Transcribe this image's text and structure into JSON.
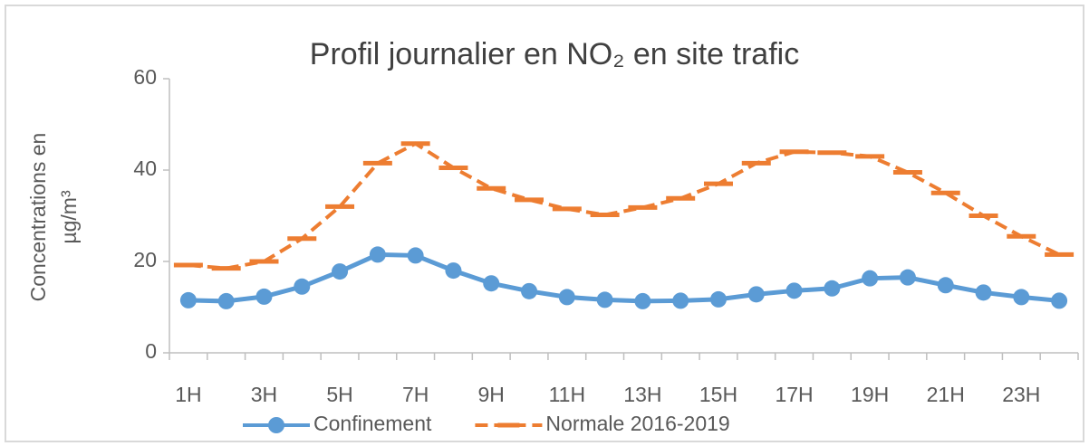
{
  "chart_data": {
    "type": "line",
    "title": "Profil journalier en NO₂ en site trafic",
    "y_label": [
      "Concentrations en",
      "µg/m³"
    ],
    "categories": [
      "1H",
      null,
      "3H",
      null,
      "5H",
      null,
      "7H",
      null,
      "9H",
      null,
      "11H",
      null,
      "13H",
      null,
      "15H",
      null,
      "17H",
      null,
      "19H",
      null,
      "21H",
      null,
      "23H",
      null
    ],
    "series": [
      {
        "name": "Confinement",
        "color": "#5b9bd5",
        "style": "solid-marker",
        "values": [
          11.5,
          11.3,
          12.3,
          14.5,
          17.8,
          21.5,
          21.3,
          18,
          15.2,
          13.5,
          12.2,
          11.6,
          11.3,
          11.4,
          11.7,
          12.8,
          13.6,
          14.1,
          16.3,
          16.5,
          14.8,
          13.2,
          12.2,
          11.4
        ]
      },
      {
        "name": "Normale 2016-2019",
        "color": "#ed7d31",
        "style": "dashed",
        "values": [
          19.2,
          18.5,
          20,
          25,
          32,
          41.5,
          45.8,
          40.5,
          36,
          33.5,
          31.5,
          30.2,
          31.8,
          33.8,
          37,
          41.5,
          44,
          43.8,
          43,
          39.5,
          35,
          30,
          25.5,
          21.5
        ]
      }
    ],
    "ylim": [
      0,
      60
    ],
    "yticks": [
      0,
      20,
      40,
      60
    ],
    "grid": false,
    "legend": "bottom"
  }
}
